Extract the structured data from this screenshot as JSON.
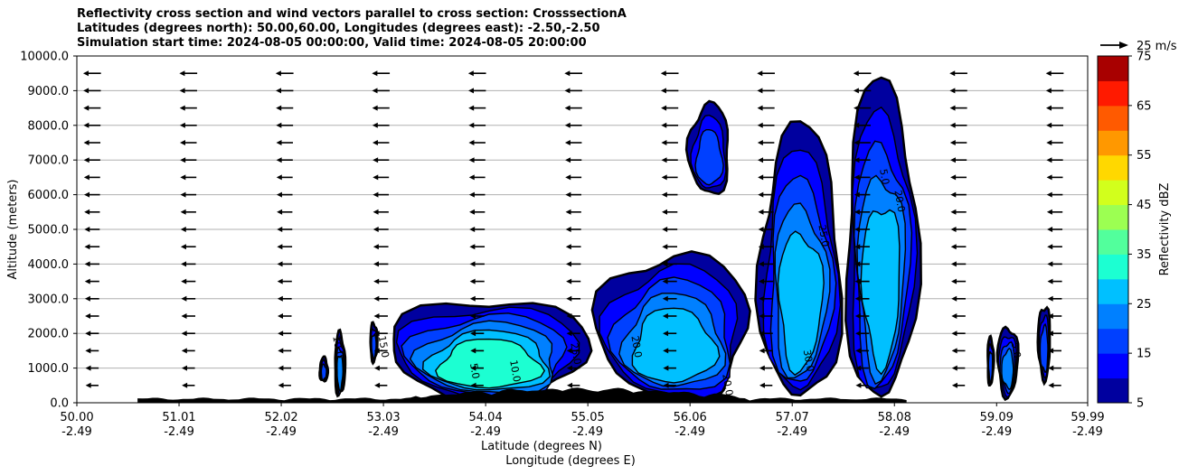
{
  "chart_data": {
    "type": "contour",
    "title_lines": [
      "Reflectivity cross section and wind vectors parallel to cross section: CrosssectionA",
      "Latitudes (degrees north): 50.00,60.00, Longitudes (degrees east): -2.50,-2.50",
      "Simulation start time: 2024-08-05 00:00:00, Valid time: 2024-08-05 20:00:00"
    ],
    "ylabel": "Altitude (meters)",
    "xlabel_lat": "Latitude (degrees N)",
    "xlabel_lon": "Longitude (degrees E)",
    "ylim": [
      0,
      10000
    ],
    "y_ticks": [
      "0.0",
      "1000.0",
      "2000.0",
      "3000.0",
      "4000.0",
      "5000.0",
      "6000.0",
      "7000.0",
      "8000.0",
      "9000.0",
      "10000.0"
    ],
    "x_tick_lat": [
      "50.00",
      "51.01",
      "52.02",
      "53.03",
      "54.04",
      "55.05",
      "56.06",
      "57.07",
      "58.08",
      "59.09",
      "59.99"
    ],
    "x_tick_lon": [
      "-2.49",
      "-2.49",
      "-2.49",
      "-2.49",
      "-2.49",
      "-2.49",
      "-2.49",
      "-2.49",
      "-2.49",
      "-2.49",
      "-2.49"
    ],
    "colorbar": {
      "label": "Reflectivity dBZ",
      "range": [
        5,
        75
      ],
      "ticks": [
        "5",
        "15",
        "25",
        "35",
        "45",
        "55",
        "65",
        "75"
      ],
      "levels": [
        5,
        10,
        15,
        20,
        25,
        30,
        35,
        40,
        45,
        50,
        55,
        60,
        65,
        70,
        75
      ],
      "colors": [
        "#00009f",
        "#0000ff",
        "#0040ff",
        "#0080ff",
        "#00c0ff",
        "#1cffd2",
        "#52ff9c",
        "#9cff52",
        "#d2ff1c",
        "#ffd800",
        "#ff9800",
        "#ff5a00",
        "#ff1a00",
        "#a80000"
      ]
    },
    "wind_key": "25 m/s",
    "contour_labels": [
      "5.0",
      "10.0",
      "15.0",
      "20.0",
      "25.0",
      "30.0"
    ],
    "cells": [
      {
        "x0": 52.4,
        "x1": 52.48,
        "top": 1300,
        "base": 600,
        "peak": 15
      },
      {
        "x0": 52.55,
        "x1": 52.65,
        "top": 2000,
        "base": 200,
        "peak": 20
      },
      {
        "x0": 52.9,
        "x1": 52.97,
        "top": 2300,
        "base": 1200,
        "peak": 15
      },
      {
        "x0": 53.1,
        "x1": 55.05,
        "top": 3000,
        "base": 0,
        "peak": 30
      },
      {
        "x0": 55.15,
        "x1": 56.65,
        "top": 4300,
        "base": 0,
        "peak": 25
      },
      {
        "x0": 56.05,
        "x1": 56.45,
        "top": 8600,
        "base": 6000,
        "peak": 15
      },
      {
        "x0": 56.75,
        "x1": 57.55,
        "top": 7900,
        "base": 0,
        "peak": 25
      },
      {
        "x0": 57.6,
        "x1": 58.3,
        "top": 9200,
        "base": 0,
        "peak": 25
      },
      {
        "x0": 59.0,
        "x1": 59.06,
        "top": 1900,
        "base": 500,
        "peak": 15
      },
      {
        "x0": 59.1,
        "x1": 59.3,
        "top": 2200,
        "base": 200,
        "peak": 20
      },
      {
        "x0": 59.5,
        "x1": 59.62,
        "top": 2800,
        "base": 700,
        "peak": 15
      }
    ]
  }
}
